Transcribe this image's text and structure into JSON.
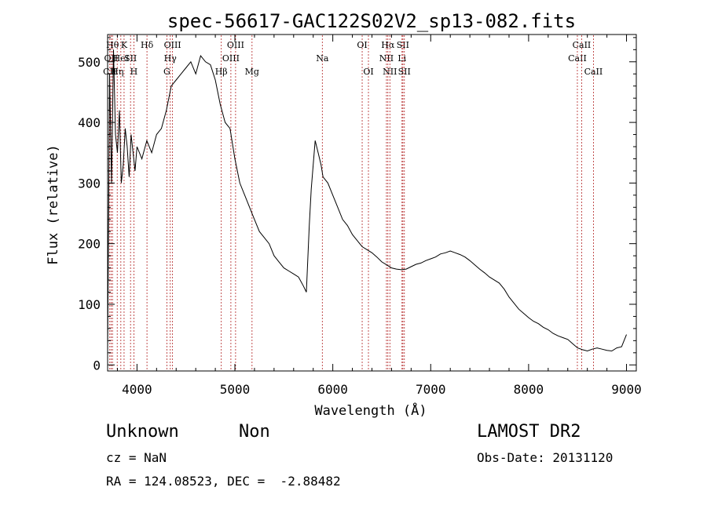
{
  "chart_data": {
    "type": "line",
    "title": "spec-56617-GAC122S02V2_sp13-082.fits",
    "xlabel": "Wavelength (Å)",
    "ylabel": "Flux (relative)",
    "xlim": [
      3700,
      9100
    ],
    "ylim": [
      -10,
      545
    ],
    "x_ticks": [
      4000,
      5000,
      6000,
      7000,
      8000,
      9000
    ],
    "y_ticks": [
      0,
      100,
      200,
      300,
      400,
      500
    ],
    "line_color": "#000000",
    "marker_color": "#b22222",
    "series": [
      {
        "x": [
          3700,
          3720,
          3740,
          3760,
          3780,
          3800,
          3820,
          3840,
          3860,
          3880,
          3900,
          3920,
          3940,
          3960,
          3980,
          4000,
          4050,
          4100,
          4150,
          4200,
          4250,
          4300,
          4350,
          4400,
          4450,
          4500,
          4550,
          4600,
          4650,
          4700,
          4750,
          4800,
          4850,
          4900,
          4950,
          5000,
          5050,
          5100,
          5150,
          5200,
          5250,
          5300,
          5350,
          5400,
          5450,
          5500,
          5550,
          5600,
          5650,
          5700,
          5730,
          5760,
          5780,
          5800,
          5820,
          5850,
          5880,
          5900,
          5950,
          6000,
          6050,
          6100,
          6150,
          6200,
          6250,
          6300,
          6350,
          6400,
          6450,
          6500,
          6550,
          6600,
          6650,
          6700,
          6750,
          6800,
          6850,
          6900,
          6950,
          7000,
          7050,
          7100,
          7150,
          7200,
          7250,
          7300,
          7350,
          7400,
          7450,
          7500,
          7550,
          7600,
          7650,
          7700,
          7750,
          7800,
          7850,
          7900,
          7950,
          8000,
          8050,
          8100,
          8150,
          8200,
          8250,
          8300,
          8350,
          8400,
          8450,
          8500,
          8550,
          8600,
          8650,
          8700,
          8750,
          8800,
          8850,
          8900,
          8950,
          9000
        ],
        "y": [
          20,
          480,
          300,
          520,
          380,
          350,
          420,
          300,
          330,
          390,
          360,
          310,
          380,
          350,
          320,
          360,
          340,
          370,
          350,
          380,
          390,
          420,
          460,
          470,
          480,
          490,
          500,
          480,
          510,
          500,
          495,
          470,
          430,
          400,
          390,
          340,
          300,
          280,
          260,
          240,
          220,
          210,
          200,
          180,
          170,
          160,
          155,
          150,
          145,
          130,
          120,
          230,
          290,
          330,
          370,
          350,
          330,
          310,
          300,
          280,
          260,
          240,
          230,
          215,
          205,
          195,
          190,
          185,
          178,
          170,
          165,
          160,
          158,
          157,
          158,
          162,
          166,
          168,
          172,
          175,
          178,
          183,
          185,
          188,
          185,
          182,
          178,
          172,
          165,
          158,
          152,
          145,
          140,
          135,
          125,
          112,
          102,
          92,
          85,
          78,
          72,
          68,
          62,
          58,
          52,
          48,
          45,
          42,
          35,
          28,
          25,
          23,
          26,
          28,
          26,
          24,
          23,
          28,
          30,
          50
        ]
      }
    ],
    "line_markers": [
      {
        "w": 3722,
        "label": "CII",
        "row": 3
      },
      {
        "w": 3735,
        "label": "OII",
        "row": 2
      },
      {
        "w": 3750,
        "label": "Hθ",
        "row": 1
      },
      {
        "w": 3798,
        "label": "Hη",
        "row": 3
      },
      {
        "w": 3835,
        "label": "HeI",
        "row": 2
      },
      {
        "w": 3868,
        "label": "K",
        "row": 1
      },
      {
        "w": 3934,
        "label": "SII",
        "row": 2
      },
      {
        "w": 3968,
        "label": "H",
        "row": 3
      },
      {
        "w": 4102,
        "label": "Hδ",
        "row": 1
      },
      {
        "w": 4305,
        "label": "G",
        "row": 3
      },
      {
        "w": 4340,
        "label": "Hγ",
        "row": 2
      },
      {
        "w": 4363,
        "label": "OIII",
        "row": 1
      },
      {
        "w": 4861,
        "label": "Hβ",
        "row": 3
      },
      {
        "w": 4959,
        "label": "OIII",
        "row": 2
      },
      {
        "w": 5007,
        "label": "OIII",
        "row": 1
      },
      {
        "w": 5175,
        "label": "Mg",
        "row": 3
      },
      {
        "w": 5893,
        "label": "Na",
        "row": 2
      },
      {
        "w": 6300,
        "label": "OI",
        "row": 1
      },
      {
        "w": 6364,
        "label": "OI",
        "row": 3
      },
      {
        "w": 6548,
        "label": "NII",
        "row": 2
      },
      {
        "w": 6563,
        "label": "Hα",
        "row": 1
      },
      {
        "w": 6583,
        "label": "NII",
        "row": 3
      },
      {
        "w": 6707,
        "label": "Li",
        "row": 2
      },
      {
        "w": 6716,
        "label": "SII",
        "row": 1
      },
      {
        "w": 6731,
        "label": "SII",
        "row": 3
      },
      {
        "w": 8498,
        "label": "CaII",
        "row": 2
      },
      {
        "w": 8542,
        "label": "CaII",
        "row": 1
      },
      {
        "w": 8662,
        "label": "CaII",
        "row": 3
      }
    ]
  },
  "info": {
    "class_label": "Unknown",
    "subclass_label": "Non",
    "survey": "LAMOST DR2",
    "cz": "cz = NaN",
    "obs_date": "Obs-Date: 20131120",
    "radec": "RA = 124.08523, DEC =  -2.88482"
  }
}
